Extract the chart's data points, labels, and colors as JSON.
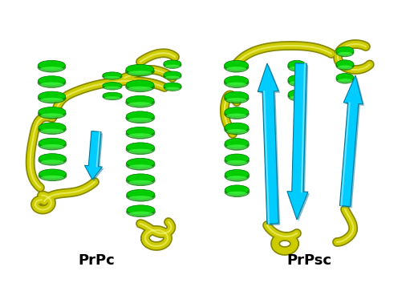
{
  "figsize": [
    5.16,
    3.58
  ],
  "dpi": 100,
  "background_color": "#ffffff",
  "label_left": "PrPc",
  "label_right": "PrPsc",
  "label_fontsize": 13,
  "label_fontweight": "bold",
  "label_color": "#000000",
  "colors": {
    "helix_green": "#00cc00",
    "helix_green_dark": "#007700",
    "helix_green_light": "#55ff55",
    "beta_cyan": "#00ccff",
    "beta_cyan_dark": "#007799",
    "loop_yellow": "#cccc00",
    "loop_yellow_dark": "#888800",
    "white": "#ffffff"
  }
}
